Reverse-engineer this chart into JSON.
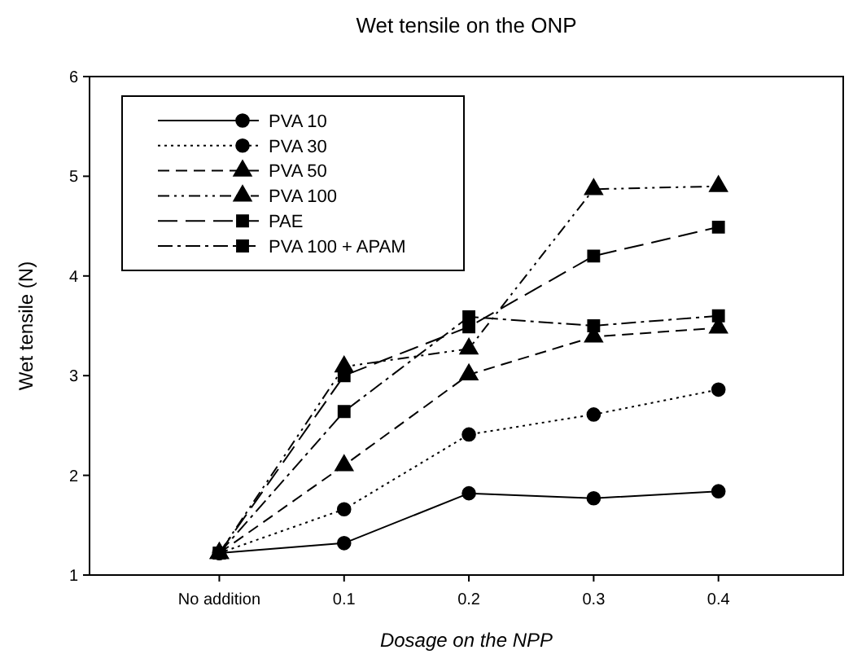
{
  "chart_data": {
    "type": "line",
    "title": "Wet tensile on the ONP",
    "xlabel": "Dosage on the NPP",
    "ylabel": "Wet tensile (N)",
    "categories": [
      "No addition",
      "0.1",
      "0.2",
      "0.3",
      "0.4"
    ],
    "series": [
      {
        "name": "PVA 10",
        "color": "#000000",
        "marker": "circle",
        "line_style": "solid",
        "values": [
          1.22,
          1.32,
          1.82,
          1.77,
          1.84
        ]
      },
      {
        "name": "PVA 30",
        "color": "#000000",
        "marker": "circle",
        "line_style": "dotted",
        "values": [
          1.22,
          1.66,
          2.41,
          2.61,
          2.86
        ]
      },
      {
        "name": "PVA 50",
        "color": "#000000",
        "marker": "triangle",
        "line_style": "dashed",
        "values": [
          1.22,
          2.1,
          3.01,
          3.39,
          3.48
        ]
      },
      {
        "name": "PVA 100",
        "color": "#000000",
        "marker": "triangle",
        "line_style": "dashed",
        "values": [
          1.22,
          3.09,
          3.27,
          4.87,
          4.9
        ]
      },
      {
        "name": "PAE",
        "color": "#000000",
        "marker": "square",
        "line_style": "dashed",
        "values": [
          1.22,
          3.0,
          3.49,
          4.2,
          4.49
        ]
      },
      {
        "name": "PVA 100 + APAM",
        "color": "#000000",
        "marker": "square",
        "line_style": "dashed",
        "values": [
          1.22,
          2.64,
          3.59,
          3.5,
          3.6
        ]
      }
    ],
    "ylim": [
      1,
      6
    ],
    "yticks": [
      1,
      2,
      3,
      4,
      5,
      6
    ],
    "grid": false,
    "legend": "top left"
  }
}
